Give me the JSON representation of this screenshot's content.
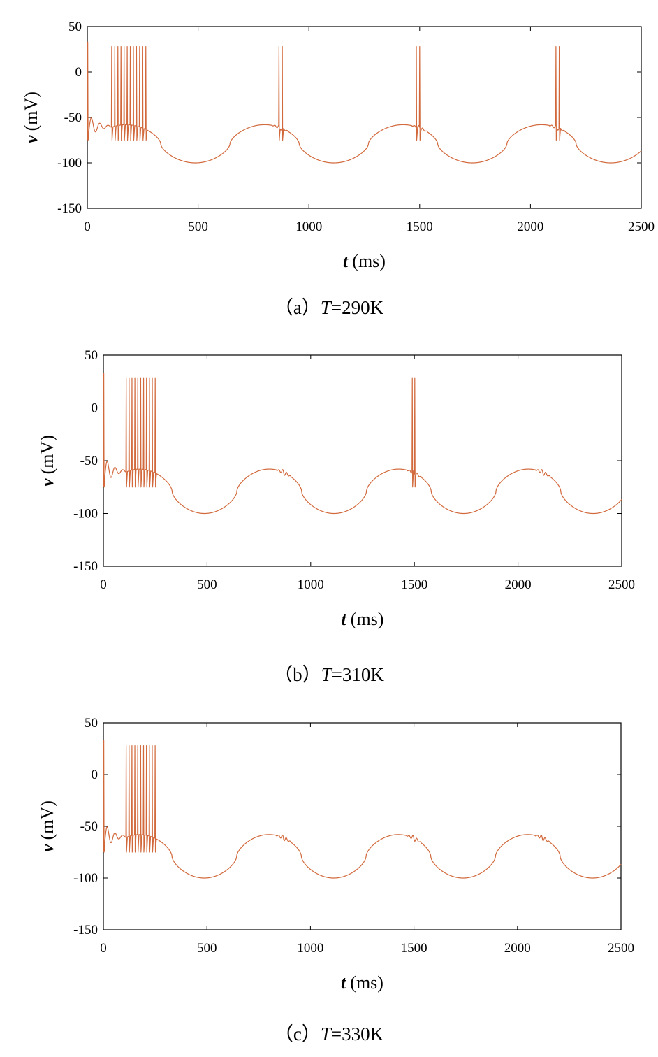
{
  "chart_data": [
    {
      "type": "line",
      "panel": "a",
      "caption_prefix": "（a）",
      "caption_var": "T",
      "caption_value": "=290K",
      "xlabel_var": "t",
      "xlabel_unit": "(ms)",
      "ylabel_var": "v",
      "ylabel_unit": "(mV)",
      "xlim": [
        0,
        2500
      ],
      "ylim": [
        -150,
        50
      ],
      "xticks": [
        "0",
        "500",
        "1000",
        "1500",
        "2000",
        "2500"
      ],
      "yticks": [
        "50",
        "0",
        "-50",
        "-100",
        "-150"
      ],
      "line_color": "#d2693c",
      "baseline": {
        "period_ms": 625,
        "trough_mV": -100,
        "plateau_mV": -58
      },
      "spike_bursts": [
        {
          "start_ms": 2,
          "count": 1,
          "isi_ms": 0,
          "peak_mV": 33,
          "min_mV": -75
        },
        {
          "start_ms": 110,
          "count": 12,
          "isi_ms": 14,
          "peak_mV": 28,
          "min_mV": -75
        },
        {
          "start_ms": 865,
          "count": 2,
          "isi_ms": 15,
          "peak_mV": 28,
          "min_mV": -75
        },
        {
          "start_ms": 1485,
          "count": 2,
          "isi_ms": 15,
          "peak_mV": 28,
          "min_mV": -75
        },
        {
          "start_ms": 2115,
          "count": 2,
          "isi_ms": 15,
          "peak_mV": 28,
          "min_mV": -75
        }
      ],
      "subthreshold_wiggles_ms": [
        860,
        1490,
        2110
      ]
    },
    {
      "type": "line",
      "panel": "b",
      "caption_prefix": "（b）",
      "caption_var": "T",
      "caption_value": "=310K",
      "xlabel_var": "t",
      "xlabel_unit": "(ms)",
      "ylabel_var": "v",
      "ylabel_unit": "(mV)",
      "xlim": [
        0,
        2500
      ],
      "ylim": [
        -150,
        50
      ],
      "xticks": [
        "0",
        "500",
        "1000",
        "1500",
        "2000",
        "2500"
      ],
      "yticks": [
        "50",
        "0",
        "-50",
        "-100",
        "-150"
      ],
      "line_color": "#d2693c",
      "baseline": {
        "period_ms": 625,
        "trough_mV": -100,
        "plateau_mV": -58
      },
      "spike_bursts": [
        {
          "start_ms": 2,
          "count": 1,
          "isi_ms": 0,
          "peak_mV": 33,
          "min_mV": -75
        },
        {
          "start_ms": 110,
          "count": 11,
          "isi_ms": 14,
          "peak_mV": 28,
          "min_mV": -75
        },
        {
          "start_ms": 1490,
          "count": 2,
          "isi_ms": 12,
          "peak_mV": 28,
          "min_mV": -75
        }
      ],
      "subthreshold_wiggles_ms": [
        860,
        1490,
        2110
      ]
    },
    {
      "type": "line",
      "panel": "c",
      "caption_prefix": "（c）",
      "caption_var": "T",
      "caption_value": "=330K",
      "xlabel_var": "t",
      "xlabel_unit": "(ms)",
      "ylabel_var": "v",
      "ylabel_unit": "(mV)",
      "xlim": [
        0,
        2500
      ],
      "ylim": [
        -150,
        50
      ],
      "xticks": [
        "0",
        "500",
        "1000",
        "1500",
        "2000",
        "2500"
      ],
      "yticks": [
        "50",
        "0",
        "-50",
        "-100",
        "-150"
      ],
      "line_color": "#d2693c",
      "baseline": {
        "period_ms": 625,
        "trough_mV": -100,
        "plateau_mV": -58
      },
      "spike_bursts": [
        {
          "start_ms": 2,
          "count": 1,
          "isi_ms": 0,
          "peak_mV": 33,
          "min_mV": -75
        },
        {
          "start_ms": 110,
          "count": 11,
          "isi_ms": 14,
          "peak_mV": 28,
          "min_mV": -75
        }
      ],
      "subthreshold_wiggles_ms": [
        860,
        1490,
        2110
      ]
    }
  ]
}
